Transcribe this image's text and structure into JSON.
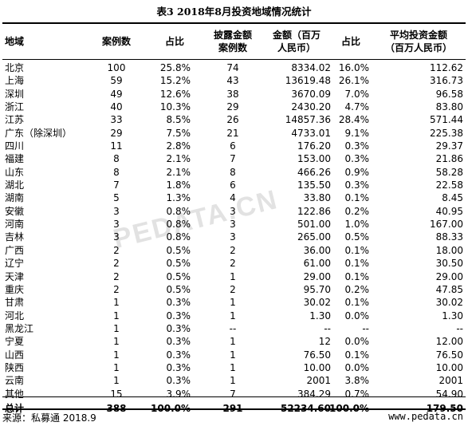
{
  "title": "表3  2018年8月投资地域情况统计",
  "headers": [
    [
      "地域"
    ],
    [
      "案例数"
    ],
    [
      "占比"
    ],
    [
      "披露金额",
      "案例数"
    ],
    [
      "金额（百万",
      "人民币）"
    ],
    [
      "占比"
    ],
    [
      "平均投资金额",
      "（百万人民币）"
    ]
  ],
  "rows": [
    [
      "北京",
      "100",
      "25.8%",
      "74",
      "8334.02",
      "16.0%",
      "112.62"
    ],
    [
      "上海",
      "59",
      "15.2%",
      "43",
      "13619.48",
      "26.1%",
      "316.73"
    ],
    [
      "深圳",
      "49",
      "12.6%",
      "38",
      "3670.09",
      "7.0%",
      "96.58"
    ],
    [
      "浙江",
      "40",
      "10.3%",
      "29",
      "2430.20",
      "4.7%",
      "83.80"
    ],
    [
      "江苏",
      "33",
      "8.5%",
      "26",
      "14857.36",
      "28.4%",
      "571.44"
    ],
    [
      "广东（除深圳）",
      "29",
      "7.5%",
      "21",
      "4733.01",
      "9.1%",
      "225.38"
    ],
    [
      "四川",
      "11",
      "2.8%",
      "6",
      "176.20",
      "0.3%",
      "29.37"
    ],
    [
      "福建",
      "8",
      "2.1%",
      "7",
      "153.00",
      "0.3%",
      "21.86"
    ],
    [
      "山东",
      "8",
      "2.1%",
      "8",
      "466.26",
      "0.9%",
      "58.28"
    ],
    [
      "湖北",
      "7",
      "1.8%",
      "6",
      "135.50",
      "0.3%",
      "22.58"
    ],
    [
      "湖南",
      "5",
      "1.3%",
      "4",
      "33.80",
      "0.1%",
      "8.45"
    ],
    [
      "安徽",
      "3",
      "0.8%",
      "3",
      "122.86",
      "0.2%",
      "40.95"
    ],
    [
      "河南",
      "3",
      "0.8%",
      "3",
      "501.00",
      "1.0%",
      "167.00"
    ],
    [
      "吉林",
      "3",
      "0.8%",
      "3",
      "265.00",
      "0.5%",
      "88.33"
    ],
    [
      "广西",
      "2",
      "0.5%",
      "2",
      "36.00",
      "0.1%",
      "18.00"
    ],
    [
      "辽宁",
      "2",
      "0.5%",
      "2",
      "61.00",
      "0.1%",
      "30.50"
    ],
    [
      "天津",
      "2",
      "0.5%",
      "1",
      "29.00",
      "0.1%",
      "29.00"
    ],
    [
      "重庆",
      "2",
      "0.5%",
      "2",
      "95.70",
      "0.2%",
      "47.85"
    ],
    [
      "甘肃",
      "1",
      "0.3%",
      "1",
      "30.02",
      "0.1%",
      "30.02"
    ],
    [
      "河北",
      "1",
      "0.3%",
      "1",
      "1.30",
      "0.0%",
      "1.30"
    ],
    [
      "黑龙江",
      "1",
      "0.3%",
      "--",
      "--",
      "--",
      "--"
    ],
    [
      "宁夏",
      "1",
      "0.3%",
      "1",
      "12",
      "0.0%",
      "12.00"
    ],
    [
      "山西",
      "1",
      "0.3%",
      "1",
      "76.50",
      "0.1%",
      "76.50"
    ],
    [
      "陕西",
      "1",
      "0.3%",
      "1",
      "10.00",
      "0.0%",
      "10.00"
    ],
    [
      "云南",
      "1",
      "0.3%",
      "1",
      "2001",
      "3.8%",
      "2001"
    ],
    [
      "其他",
      "15",
      "3.9%",
      "7",
      "384.29",
      "0.7%",
      "54.90"
    ]
  ],
  "total": [
    "总计",
    "388",
    "100.0%",
    "291",
    "52234.60",
    "100.0%",
    "179.50"
  ],
  "source": "来源：私募通  2018.9",
  "site": "www.pedata.cn",
  "watermark": "PEDATA.CN"
}
